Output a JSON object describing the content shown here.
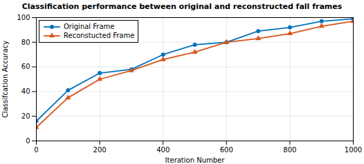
{
  "chart_data": {
    "type": "line",
    "title": "Classification performance between original and reconstructed fall frames",
    "xlabel": "Iteration Number",
    "ylabel": "Classifcation Accuracy",
    "x": [
      0,
      100,
      200,
      300,
      400,
      500,
      600,
      700,
      800,
      900,
      1000
    ],
    "series": [
      {
        "name": "Original Frame",
        "color": "#0072BD",
        "marker": "circle",
        "values": [
          16,
          41,
          55,
          58,
          70,
          78,
          80,
          89,
          92,
          97,
          99
        ]
      },
      {
        "name": "Reconstucted Frame",
        "color": "#D95319",
        "marker": "triangle",
        "values": [
          11,
          35,
          50,
          57,
          66,
          72,
          80,
          83,
          87,
          93,
          97
        ]
      }
    ],
    "xlim": [
      0,
      1000
    ],
    "ylim": [
      0,
      100
    ],
    "xticks": [
      0,
      200,
      400,
      600,
      800,
      1000
    ],
    "yticks": [
      0,
      20,
      40,
      60,
      80,
      100
    ],
    "grid": true,
    "legend": "upper left"
  }
}
